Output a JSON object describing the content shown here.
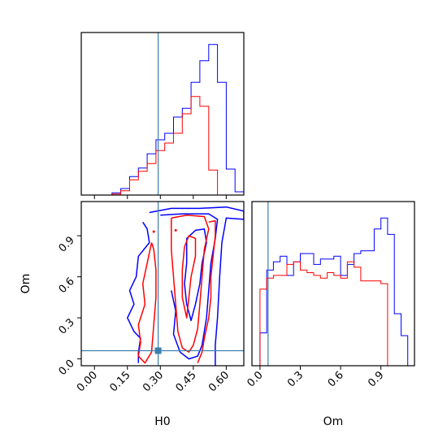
{
  "chart_data": {
    "type": "corner",
    "params": [
      "H0",
      "Om"
    ],
    "truth": {
      "H0": 0.29,
      "Om": 0.06
    },
    "colors": {
      "series_a": "#0000ff",
      "series_b": "#ff0000",
      "truth": "#3b7fae"
    },
    "grid": false,
    "legend": "none",
    "panels": [
      {
        "name": "H0-marginal",
        "x_param": "H0",
        "xlim": [
          -0.06,
          0.68
        ],
        "x_ticks": [
          "0.00",
          "0.15",
          "0.30",
          "0.45",
          "0.60"
        ],
        "show_tick_labels": false,
        "bin_edges": [
          0.08,
          0.12,
          0.16,
          0.2,
          0.24,
          0.28,
          0.32,
          0.36,
          0.4,
          0.44,
          0.48,
          0.52,
          0.56,
          0.6,
          0.64,
          0.68
        ],
        "series": [
          {
            "color": "blue",
            "values": [
              0.2,
              0.6,
              1.7,
              2.5,
              3.8,
              5.1,
              5.7,
              7.2,
              8.0,
              10.4,
              12.4,
              13.9,
              10.4,
              2.4,
              0.3
            ]
          },
          {
            "color": "red",
            "values": [
              0.1,
              0.4,
              1.4,
              2.2,
              2.9,
              4.1,
              4.8,
              5.7,
              7.5,
              9.1,
              8.2,
              2.3,
              0,
              0,
              0
            ]
          }
        ],
        "ylim": [
          0,
          15
        ]
      },
      {
        "name": "Om-marginal",
        "x_param": "Om",
        "x_label": "Om",
        "xlim": [
          -0.06,
          1.15
        ],
        "x_ticks": [
          "0.0",
          "0.3",
          "0.6",
          "0.9"
        ],
        "bin_edges": [
          0.0,
          0.05,
          0.1,
          0.15,
          0.2,
          0.25,
          0.3,
          0.35,
          0.4,
          0.45,
          0.5,
          0.55,
          0.6,
          0.65,
          0.7,
          0.75,
          0.8,
          0.85,
          0.9,
          0.95,
          1.0,
          1.05,
          1.1
        ],
        "series": [
          {
            "color": "blue",
            "values": [
              1.2,
              3.5,
              3.8,
              4.0,
              3.3,
              3.8,
              4.1,
              4.1,
              3.7,
              3.9,
              3.9,
              4.0,
              3.3,
              3.7,
              4.1,
              4.2,
              4.2,
              5.0,
              5.4,
              4.8,
              1.9,
              1.1
            ]
          },
          {
            "color": "red",
            "values": [
              2.8,
              3.2,
              3.3,
              3.3,
              3.7,
              3.8,
              3.5,
              3.4,
              3.3,
              3.2,
              3.4,
              3.3,
              3.2,
              3.8,
              3.6,
              3.1,
              3.1,
              3.1,
              3.0,
              0,
              0,
              0
            ]
          }
        ],
        "ylim": [
          0,
          6
        ]
      },
      {
        "name": "H0-Om-contour",
        "x_param": "H0",
        "y_param": "Om",
        "x_label": "H0",
        "y_label": "Om",
        "xlim": [
          -0.06,
          0.68
        ],
        "ylim": [
          -0.05,
          1.15
        ],
        "x_ticks": [
          "0.00",
          "0.15",
          "0.30",
          "0.45",
          "0.60"
        ],
        "y_ticks": [
          "0.0",
          "0.3",
          "0.6",
          "0.9"
        ],
        "contours": [
          {
            "color": "blue",
            "points": [
              [
                0.25,
                1.07
              ],
              [
                0.35,
                1.1
              ],
              [
                0.48,
                1.1
              ],
              [
                0.6,
                1.11
              ],
              [
                0.68,
                1.08
              ],
              [
                0.68,
                1.02
              ],
              [
                0.6,
                1.03
              ],
              [
                0.58,
                0.85
              ],
              [
                0.57,
                0.6
              ],
              [
                0.56,
                0.3
              ],
              [
                0.55,
                0.1
              ],
              [
                0.55,
                -0.05
              ]
            ]
          },
          {
            "color": "blue",
            "points": [
              [
                0.22,
                1.0
              ],
              [
                0.24,
                0.95
              ],
              [
                0.25,
                0.85
              ],
              [
                0.2,
                0.75
              ],
              [
                0.19,
                0.6
              ],
              [
                0.16,
                0.5
              ],
              [
                0.18,
                0.4
              ],
              [
                0.15,
                0.3
              ],
              [
                0.18,
                0.2
              ],
              [
                0.21,
                0.15
              ],
              [
                0.2,
                0.05
              ],
              [
                0.2,
                -0.03
              ]
            ]
          },
          {
            "color": "blue",
            "points": [
              [
                0.3,
                1.05
              ],
              [
                0.4,
                1.06
              ],
              [
                0.52,
                1.06
              ],
              [
                0.56,
                1.02
              ],
              [
                0.55,
                0.88
              ],
              [
                0.53,
                0.7
              ],
              [
                0.52,
                0.5
              ],
              [
                0.51,
                0.3
              ],
              [
                0.49,
                0.1
              ],
              [
                0.47,
                0.02
              ],
              [
                0.43,
                0.0
              ],
              [
                0.39,
                0.05
              ],
              [
                0.36,
                0.18
              ],
              [
                0.37,
                0.35
              ],
              [
                0.35,
                0.5
              ]
            ]
          },
          {
            "color": "blue",
            "points": [
              [
                0.42,
                0.88
              ],
              [
                0.46,
                0.94
              ],
              [
                0.5,
                0.95
              ],
              [
                0.51,
                0.85
              ],
              [
                0.49,
                0.7
              ],
              [
                0.48,
                0.55
              ],
              [
                0.46,
                0.4
              ],
              [
                0.44,
                0.28
              ],
              [
                0.42,
                0.4
              ],
              [
                0.41,
                0.55
              ],
              [
                0.42,
                0.7
              ],
              [
                0.42,
                0.88
              ]
            ]
          },
          {
            "color": "red",
            "points": [
              [
                0.35,
                1.03
              ],
              [
                0.42,
                1.05
              ],
              [
                0.5,
                1.04
              ],
              [
                0.52,
                0.95
              ],
              [
                0.5,
                0.8
              ],
              [
                0.49,
                0.6
              ],
              [
                0.48,
                0.4
              ],
              [
                0.47,
                0.22
              ],
              [
                0.45,
                0.1
              ],
              [
                0.43,
                0.05
              ],
              [
                0.4,
                0.08
              ],
              [
                0.38,
                0.2
              ],
              [
                0.37,
                0.4
              ],
              [
                0.36,
                0.6
              ],
              [
                0.35,
                0.8
              ],
              [
                0.35,
                1.03
              ]
            ]
          },
          {
            "color": "red",
            "points": [
              [
                0.41,
                0.82
              ],
              [
                0.43,
                0.9
              ],
              [
                0.46,
                0.88
              ],
              [
                0.46,
                0.75
              ],
              [
                0.44,
                0.6
              ],
              [
                0.43,
                0.45
              ],
              [
                0.42,
                0.3
              ],
              [
                0.4,
                0.45
              ],
              [
                0.4,
                0.65
              ],
              [
                0.41,
                0.82
              ]
            ]
          },
          {
            "color": "red",
            "points": [
              [
                0.26,
                0.85
              ],
              [
                0.24,
                0.7
              ],
              [
                0.22,
                0.55
              ],
              [
                0.23,
                0.4
              ],
              [
                0.2,
                0.25
              ],
              [
                0.21,
                0.12
              ],
              [
                0.2,
                0.02
              ],
              [
                0.23,
                -0.03
              ],
              [
                0.26,
                0.05
              ],
              [
                0.27,
                0.25
              ],
              [
                0.28,
                0.45
              ],
              [
                0.28,
                0.65
              ],
              [
                0.27,
                0.8
              ],
              [
                0.26,
                0.85
              ]
            ]
          },
          {
            "color": "red",
            "points": [
              [
                0.52,
                1.0
              ],
              [
                0.55,
                1.01
              ],
              [
                0.55,
                0.9
              ],
              [
                0.54,
                0.75
              ],
              [
                0.53,
                0.6
              ],
              [
                0.53,
                0.45
              ],
              [
                0.52,
                0.3
              ],
              [
                0.5,
                0.15
              ],
              [
                0.49,
                0.05
              ],
              [
                0.47,
                -0.03
              ]
            ]
          }
        ],
        "dots": [
          {
            "color": "red",
            "x": 0.27,
            "y": 0.93
          },
          {
            "color": "red",
            "x": 0.37,
            "y": 0.94
          }
        ]
      }
    ]
  }
}
